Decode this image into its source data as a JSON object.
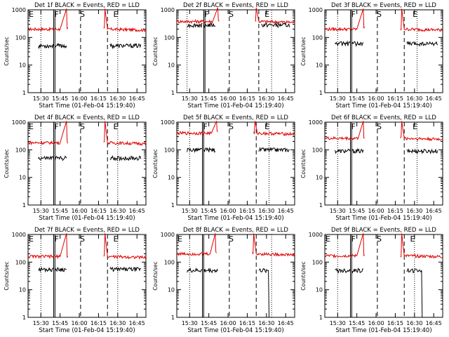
{
  "figure": {
    "background": "#ffffff",
    "event_color": "#000000",
    "lld_color": "#e00000"
  },
  "chart_data": [
    {
      "type": "line",
      "title": "Det 1f BLACK = Events, RED = LLD",
      "xlabel": "Start Time (01-Feb-04 15:19:40)",
      "ylabel": "Counts/sec",
      "yscale": "log",
      "ylim": [
        1,
        1000
      ],
      "yticks": [
        "1",
        "10",
        "100",
        "1000"
      ],
      "xticks": [
        "15:30",
        "15:45",
        "16:00",
        "16:15",
        "16:30",
        "16:45"
      ],
      "xlim_min": [
        0,
        92
      ],
      "flags": [
        {
          "label": "E",
          "t": 0
        },
        {
          "label": "F",
          "t": 20
        },
        {
          "label": "S",
          "t": 40
        },
        {
          "label": "E",
          "t": 66
        }
      ],
      "events": {
        "base": 50,
        "gap": [
          30,
          64
        ]
      },
      "lld": {
        "base": 200,
        "peak": 1100,
        "rise": [
          25,
          30
        ],
        "fall": [
          60,
          62
        ]
      },
      "solid_lines": [
        20,
        21
      ],
      "dotted_lines": [
        10,
        70
      ],
      "dashed_lines": [
        41,
        62
      ]
    },
    {
      "type": "line",
      "title": "Det 2f BLACK = Events, RED = LLD",
      "xlabel": "Start Time (01-Feb-04 15:19:40)",
      "ylabel": "Counts/sec",
      "yscale": "log",
      "ylim": [
        1,
        1000
      ],
      "yticks": [
        "1",
        "10",
        "100",
        "1000"
      ],
      "xticks": [
        "15:30",
        "15:45",
        "16:00",
        "16:15",
        "16:30",
        "16:45"
      ],
      "xlim_min": [
        0,
        92
      ],
      "flags": [
        {
          "label": "F",
          "t": 21
        },
        {
          "label": "S",
          "t": 40
        },
        {
          "label": "E",
          "t": 68
        }
      ],
      "events": {
        "base": 280,
        "gap": [
          30,
          66
        ]
      },
      "lld": {
        "base": 380,
        "peak": 1200,
        "rise": [
          28,
          32
        ],
        "fall": [
          62,
          64
        ]
      },
      "solid_lines": [
        21,
        22
      ],
      "dotted_lines": [
        8,
        74
      ],
      "dashed_lines": [
        41,
        64
      ]
    },
    {
      "type": "line",
      "title": "Det 3f BLACK = Events, RED = LLD",
      "xlabel": "Start Time (01-Feb-04 15:19:40)",
      "ylabel": "Counts/sec",
      "yscale": "log",
      "ylim": [
        1,
        1000
      ],
      "yticks": [
        "1",
        "10",
        "100",
        "1000"
      ],
      "xticks": [
        "15:30",
        "15:45",
        "16:00",
        "16:15",
        "16:30",
        "16:45"
      ],
      "xlim_min": [
        0,
        92
      ],
      "flags": [
        {
          "label": "F",
          "t": 20
        },
        {
          "label": "S",
          "t": 40
        },
        {
          "label": "E",
          "t": 68
        }
      ],
      "events": {
        "base": 60,
        "gap": [
          30,
          64
        ]
      },
      "lld": {
        "base": 200,
        "peak": 1100,
        "rise": [
          25,
          30
        ],
        "fall": [
          60,
          62
        ]
      },
      "solid_lines": [
        20,
        21
      ],
      "dotted_lines": [
        10,
        72
      ],
      "dashed_lines": [
        41,
        62
      ]
    },
    {
      "type": "line",
      "title": "Det 4f BLACK = Events, RED = LLD",
      "xlabel": "Start Time (01-Feb-04 15:19:40)",
      "ylabel": "Counts/sec",
      "yscale": "log",
      "ylim": [
        1,
        1000
      ],
      "yticks": [
        "1",
        "10",
        "100",
        "1000"
      ],
      "xticks": [
        "15:30",
        "15:45",
        "16:00",
        "16:15",
        "16:30",
        "16:45"
      ],
      "xlim_min": [
        0,
        92
      ],
      "flags": [
        {
          "label": "E",
          "t": 0
        },
        {
          "label": "F",
          "t": 20
        },
        {
          "label": "S",
          "t": 40
        },
        {
          "label": "E",
          "t": 66
        }
      ],
      "events": {
        "base": 50,
        "gap": [
          30,
          64
        ]
      },
      "lld": {
        "base": 180,
        "peak": 1100,
        "rise": [
          25,
          30
        ],
        "fall": [
          60,
          62
        ]
      },
      "solid_lines": [
        20,
        21
      ],
      "dotted_lines": [
        10,
        70
      ],
      "dashed_lines": [
        41,
        62
      ]
    },
    {
      "type": "line",
      "title": "Det 5f BLACK = Events, RED = LLD",
      "xlabel": "Start Time (01-Feb-04 15:19:40)",
      "ylabel": "Counts/sec",
      "yscale": "log",
      "ylim": [
        1,
        1000
      ],
      "yticks": [
        "1",
        "10",
        "100",
        "1000"
      ],
      "xticks": [
        "15:30",
        "15:45",
        "16:00",
        "16:15",
        "16:30",
        "16:45"
      ],
      "xlim_min": [
        0,
        92
      ],
      "flags": [
        {
          "label": "F",
          "t": 20
        },
        {
          "label": "S",
          "t": 40
        },
        {
          "label": "E",
          "t": 68
        }
      ],
      "events": {
        "base": 100,
        "gap": [
          30,
          64
        ]
      },
      "lld": {
        "base": 400,
        "peak": 1100,
        "rise": [
          27,
          31
        ],
        "fall": [
          61,
          63
        ]
      },
      "solid_lines": [
        20,
        21
      ],
      "dotted_lines": [
        10,
        72
      ],
      "dashed_lines": [
        41,
        62
      ]
    },
    {
      "type": "line",
      "title": "Det 6f BLACK = Events, RED = LLD",
      "xlabel": "Start Time (01-Feb-04 15:19:40)",
      "ylabel": "Counts/sec",
      "yscale": "log",
      "ylim": [
        1,
        1000
      ],
      "yticks": [
        "1",
        "10",
        "100",
        "1000"
      ],
      "xticks": [
        "15:30",
        "15:45",
        "16:00",
        "16:15",
        "16:30",
        "16:45"
      ],
      "xlim_min": [
        0,
        92
      ],
      "flags": [
        {
          "label": "F",
          "t": 20
        },
        {
          "label": "S",
          "t": 40
        },
        {
          "label": "E",
          "t": 68
        }
      ],
      "events": {
        "base": 90,
        "gap": [
          30,
          64
        ]
      },
      "lld": {
        "base": 260,
        "peak": 1100,
        "rise": [
          26,
          30
        ],
        "fall": [
          60,
          62
        ]
      },
      "solid_lines": [
        20,
        21
      ],
      "dotted_lines": [
        10,
        72
      ],
      "dashed_lines": [
        41,
        62
      ]
    },
    {
      "type": "line",
      "title": "Det 7f BLACK = Events, RED = LLD",
      "xlabel": "Start Time (01-Feb-04 15:19:40)",
      "ylabel": "Counts/sec",
      "yscale": "log",
      "ylim": [
        1,
        1000
      ],
      "yticks": [
        "1",
        "10",
        "100",
        "1000"
      ],
      "xticks": [
        "15:30",
        "15:45",
        "16:00",
        "16:15",
        "16:30",
        "16:45"
      ],
      "xlim_min": [
        0,
        92
      ],
      "flags": [
        {
          "label": "E",
          "t": 0
        },
        {
          "label": "F",
          "t": 20
        },
        {
          "label": "S",
          "t": 40
        },
        {
          "label": "E",
          "t": 66
        }
      ],
      "events": {
        "base": 55,
        "gap": [
          30,
          64
        ]
      },
      "lld": {
        "base": 160,
        "peak": 1100,
        "rise": [
          25,
          30
        ],
        "fall": [
          60,
          62
        ]
      },
      "solid_lines": [
        20,
        21
      ],
      "dotted_lines": [
        10,
        70
      ],
      "dashed_lines": [
        41,
        62
      ]
    },
    {
      "type": "line",
      "title": "Det 8f BLACK = Events, RED = LLD",
      "xlabel": "Start Time (01-Feb-04 15:19:40)",
      "ylabel": "Counts/sec",
      "yscale": "log",
      "ylim": [
        1,
        1000
      ],
      "yticks": [
        "1",
        "10",
        "100",
        "1000"
      ],
      "xticks": [
        "15:30",
        "15:45",
        "16:00",
        "16:15",
        "16:30",
        "16:45"
      ],
      "xlim_min": [
        0,
        92
      ],
      "flags": [
        {
          "label": "E",
          "t": 0
        },
        {
          "label": "S",
          "t": 40
        }
      ],
      "events": {
        "base": 50,
        "gap": [
          32,
          64
        ],
        "drop_at": 72
      },
      "lld": {
        "base": 200,
        "peak": 1100,
        "rise": [
          26,
          30
        ],
        "fall": [
          60,
          62
        ]
      },
      "solid_lines": [
        20,
        21
      ],
      "dotted_lines": [
        10,
        74
      ],
      "dashed_lines": [
        41,
        62
      ]
    },
    {
      "type": "line",
      "title": "Det 9f BLACK = Events, RED = LLD",
      "xlabel": "Start Time (01-Feb-04 15:19:40)",
      "ylabel": "Counts/sec",
      "yscale": "log",
      "ylim": [
        1,
        1000
      ],
      "yticks": [
        "1",
        "10",
        "100",
        "1000"
      ],
      "xticks": [
        "15:30",
        "15:45",
        "16:00",
        "16:15",
        "16:30",
        "16:45"
      ],
      "xlim_min": [
        0,
        92
      ],
      "flags": [
        {
          "label": "E",
          "t": 0
        },
        {
          "label": "F",
          "t": 20
        },
        {
          "label": "S",
          "t": 40
        },
        {
          "label": "E",
          "t": 66
        }
      ],
      "events": {
        "base": 50,
        "gap": [
          30,
          64
        ],
        "drop_at": 76
      },
      "lld": {
        "base": 170,
        "peak": 1100,
        "rise": [
          25,
          30
        ],
        "fall": [
          60,
          62
        ]
      },
      "solid_lines": [
        20,
        21
      ],
      "dotted_lines": [
        10,
        70
      ],
      "dashed_lines": [
        41,
        62
      ]
    }
  ]
}
